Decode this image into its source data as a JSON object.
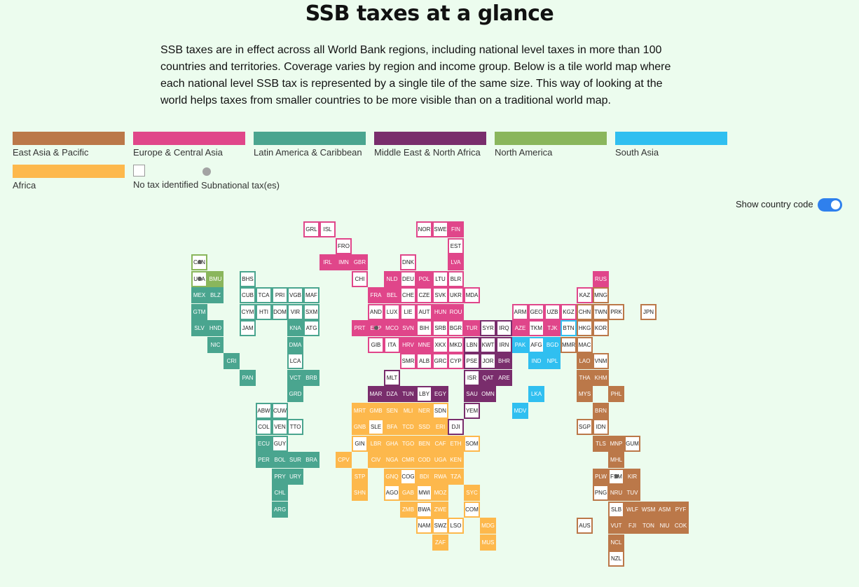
{
  "title": "SSB taxes at a glance",
  "intro": "SSB taxes are in effect across all World Bank regions, including national level taxes in more than 100 countries and territories. Coverage varies by region and income group. Below is a tile world map where each national level SSB tax is represented by a single tile of the same size. This way of looking at the world helps taxes from smaller countries to be more visible than on a traditional world map.",
  "legend": {
    "regions": [
      {
        "id": "eap",
        "label": "East Asia & Pacific",
        "color": "#bb7849"
      },
      {
        "id": "eca",
        "label": "Europe & Central Asia",
        "color": "#e0468a"
      },
      {
        "id": "lac",
        "label": "Latin America & Caribbean",
        "color": "#4aa58f"
      },
      {
        "id": "mena",
        "label": "Middle East & North Africa",
        "color": "#792d6c"
      },
      {
        "id": "na",
        "label": "North America",
        "color": "#8ab65c"
      },
      {
        "id": "sa",
        "label": "South Asia",
        "color": "#30bff0"
      },
      {
        "id": "af",
        "label": "Africa",
        "color": "#fdb84c"
      }
    ],
    "no_tax_label": "No tax identified",
    "subnational_label": "Subnational tax(es)"
  },
  "toggle": {
    "label": "Show country code",
    "on": true
  },
  "tiles": [
    {
      "code": "GRL",
      "region": "eca",
      "tax": false
    },
    {
      "code": "ISL",
      "region": "eca",
      "tax": false
    },
    {
      "code": "NOR",
      "region": "eca",
      "tax": false
    },
    {
      "code": "SWE",
      "region": "eca",
      "tax": false
    },
    {
      "code": "FIN",
      "region": "eca",
      "tax": true
    },
    {
      "code": "FRO",
      "region": "eca",
      "tax": false
    },
    {
      "code": "EST",
      "region": "eca",
      "tax": false
    },
    {
      "code": "CAN",
      "region": "na",
      "tax": false,
      "sub": true
    },
    {
      "code": "IRL",
      "region": "eca",
      "tax": true
    },
    {
      "code": "IMN",
      "region": "eca",
      "tax": true
    },
    {
      "code": "GBR",
      "region": "eca",
      "tax": true
    },
    {
      "code": "DNK",
      "region": "eca",
      "tax": false
    },
    {
      "code": "LVA",
      "region": "eca",
      "tax": true
    },
    {
      "code": "USA",
      "region": "na",
      "tax": false,
      "sub": true
    },
    {
      "code": "BMU",
      "region": "na",
      "tax": true
    },
    {
      "code": "BHS",
      "region": "lac",
      "tax": false
    },
    {
      "code": "CHI",
      "region": "eca",
      "tax": false
    },
    {
      "code": "NLD",
      "region": "eca",
      "tax": true
    },
    {
      "code": "DEU",
      "region": "eca",
      "tax": false
    },
    {
      "code": "POL",
      "region": "eca",
      "tax": true
    },
    {
      "code": "LTU",
      "region": "eca",
      "tax": false
    },
    {
      "code": "BLR",
      "region": "eca",
      "tax": false
    },
    {
      "code": "RUS",
      "region": "eca",
      "tax": true
    },
    {
      "code": "MEX",
      "region": "lac",
      "tax": true
    },
    {
      "code": "BLZ",
      "region": "lac",
      "tax": true
    },
    {
      "code": "CUB",
      "region": "lac",
      "tax": false
    },
    {
      "code": "TCA",
      "region": "lac",
      "tax": false
    },
    {
      "code": "PRI",
      "region": "lac",
      "tax": false
    },
    {
      "code": "VGB",
      "region": "lac",
      "tax": false
    },
    {
      "code": "MAF",
      "region": "lac",
      "tax": false
    },
    {
      "code": "FRA",
      "region": "eca",
      "tax": true
    },
    {
      "code": "BEL",
      "region": "eca",
      "tax": true
    },
    {
      "code": "CHE",
      "region": "eca",
      "tax": false
    },
    {
      "code": "CZE",
      "region": "eca",
      "tax": false
    },
    {
      "code": "SVK",
      "region": "eca",
      "tax": false
    },
    {
      "code": "UKR",
      "region": "eca",
      "tax": false
    },
    {
      "code": "MDA",
      "region": "eca",
      "tax": false
    },
    {
      "code": "KAZ",
      "region": "eca",
      "tax": false
    },
    {
      "code": "MNG",
      "region": "eap",
      "tax": false
    },
    {
      "code": "GTM",
      "region": "lac",
      "tax": true
    },
    {
      "code": "CYM",
      "region": "lac",
      "tax": false
    },
    {
      "code": "HTI",
      "region": "lac",
      "tax": false
    },
    {
      "code": "DOM",
      "region": "lac",
      "tax": false
    },
    {
      "code": "VIR",
      "region": "lac",
      "tax": false
    },
    {
      "code": "SXM",
      "region": "lac",
      "tax": false
    },
    {
      "code": "AND",
      "region": "eca",
      "tax": false
    },
    {
      "code": "LUX",
      "region": "eca",
      "tax": false
    },
    {
      "code": "LIE",
      "region": "eca",
      "tax": false
    },
    {
      "code": "AUT",
      "region": "eca",
      "tax": false
    },
    {
      "code": "HUN",
      "region": "eca",
      "tax": true
    },
    {
      "code": "ROU",
      "region": "eca",
      "tax": true
    },
    {
      "code": "ARM",
      "region": "eca",
      "tax": false
    },
    {
      "code": "GEO",
      "region": "eca",
      "tax": false
    },
    {
      "code": "UZB",
      "region": "eca",
      "tax": false
    },
    {
      "code": "KGZ",
      "region": "eca",
      "tax": false
    },
    {
      "code": "CHN",
      "region": "eap",
      "tax": false
    },
    {
      "code": "TWN",
      "region": "eap",
      "tax": false
    },
    {
      "code": "PRK",
      "region": "eap",
      "tax": false
    },
    {
      "code": "JPN",
      "region": "eap",
      "tax": false
    },
    {
      "code": "SLV",
      "region": "lac",
      "tax": true
    },
    {
      "code": "HND",
      "region": "lac",
      "tax": true
    },
    {
      "code": "JAM",
      "region": "lac",
      "tax": false
    },
    {
      "code": "KNA",
      "region": "lac",
      "tax": true
    },
    {
      "code": "ATG",
      "region": "lac",
      "tax": false
    },
    {
      "code": "PRT",
      "region": "eca",
      "tax": true
    },
    {
      "code": "ESP",
      "region": "eca",
      "tax": true,
      "sub": true
    },
    {
      "code": "MCO",
      "region": "eca",
      "tax": true
    },
    {
      "code": "SVN",
      "region": "eca",
      "tax": true
    },
    {
      "code": "BIH",
      "region": "eca",
      "tax": false
    },
    {
      "code": "SRB",
      "region": "eca",
      "tax": false
    },
    {
      "code": "BGR",
      "region": "eca",
      "tax": false
    },
    {
      "code": "TUR",
      "region": "eca",
      "tax": true
    },
    {
      "code": "SYR",
      "region": "mena",
      "tax": false
    },
    {
      "code": "IRQ",
      "region": "mena",
      "tax": false
    },
    {
      "code": "AZE",
      "region": "eca",
      "tax": true
    },
    {
      "code": "TKM",
      "region": "eca",
      "tax": false
    },
    {
      "code": "TJK",
      "region": "eca",
      "tax": true
    },
    {
      "code": "BTN",
      "region": "sa",
      "tax": false
    },
    {
      "code": "HKG",
      "region": "eap",
      "tax": false
    },
    {
      "code": "KOR",
      "region": "eap",
      "tax": false
    },
    {
      "code": "NIC",
      "region": "lac",
      "tax": true
    },
    {
      "code": "DMA",
      "region": "lac",
      "tax": true
    },
    {
      "code": "GIB",
      "region": "eca",
      "tax": false
    },
    {
      "code": "ITA",
      "region": "eca",
      "tax": false
    },
    {
      "code": "HRV",
      "region": "eca",
      "tax": true
    },
    {
      "code": "MNE",
      "region": "eca",
      "tax": true
    },
    {
      "code": "XKX",
      "region": "eca",
      "tax": false
    },
    {
      "code": "MKD",
      "region": "eca",
      "tax": false
    },
    {
      "code": "LBN",
      "region": "mena",
      "tax": false
    },
    {
      "code": "KWT",
      "region": "mena",
      "tax": false
    },
    {
      "code": "IRN",
      "region": "mena",
      "tax": false
    },
    {
      "code": "PAK",
      "region": "sa",
      "tax": true
    },
    {
      "code": "AFG",
      "region": "sa",
      "tax": false
    },
    {
      "code": "BGD",
      "region": "sa",
      "tax": true
    },
    {
      "code": "MMR",
      "region": "eap",
      "tax": false
    },
    {
      "code": "MAC",
      "region": "eap",
      "tax": false
    },
    {
      "code": "CRI",
      "region": "lac",
      "tax": true
    },
    {
      "code": "LCA",
      "region": "lac",
      "tax": false
    },
    {
      "code": "SMR",
      "region": "eca",
      "tax": false
    },
    {
      "code": "ALB",
      "region": "eca",
      "tax": false
    },
    {
      "code": "GRC",
      "region": "eca",
      "tax": false
    },
    {
      "code": "CYP",
      "region": "eca",
      "tax": false
    },
    {
      "code": "PSE",
      "region": "mena",
      "tax": false
    },
    {
      "code": "JOR",
      "region": "mena",
      "tax": false
    },
    {
      "code": "BHR",
      "region": "mena",
      "tax": true
    },
    {
      "code": "IND",
      "region": "sa",
      "tax": true
    },
    {
      "code": "NPL",
      "region": "sa",
      "tax": true
    },
    {
      "code": "LAO",
      "region": "eap",
      "tax": true
    },
    {
      "code": "VNM",
      "region": "eap",
      "tax": false
    },
    {
      "code": "PAN",
      "region": "lac",
      "tax": true
    },
    {
      "code": "VCT",
      "region": "lac",
      "tax": true
    },
    {
      "code": "BRB",
      "region": "lac",
      "tax": true
    },
    {
      "code": "MLT",
      "region": "mena",
      "tax": false
    },
    {
      "code": "ISR",
      "region": "mena",
      "tax": false
    },
    {
      "code": "QAT",
      "region": "mena",
      "tax": true
    },
    {
      "code": "ARE",
      "region": "mena",
      "tax": true
    },
    {
      "code": "THA",
      "region": "eap",
      "tax": true
    },
    {
      "code": "KHM",
      "region": "eap",
      "tax": true
    },
    {
      "code": "GRD",
      "region": "lac",
      "tax": true
    },
    {
      "code": "MAR",
      "region": "mena",
      "tax": true
    },
    {
      "code": "DZA",
      "region": "mena",
      "tax": true
    },
    {
      "code": "TUN",
      "region": "mena",
      "tax": true
    },
    {
      "code": "LBY",
      "region": "mena",
      "tax": false
    },
    {
      "code": "EGY",
      "region": "mena",
      "tax": true
    },
    {
      "code": "SAU",
      "region": "mena",
      "tax": true
    },
    {
      "code": "OMN",
      "region": "mena",
      "tax": true
    },
    {
      "code": "LKA",
      "region": "sa",
      "tax": true
    },
    {
      "code": "MYS",
      "region": "eap",
      "tax": true
    },
    {
      "code": "PHL",
      "region": "eap",
      "tax": true
    },
    {
      "code": "ABW",
      "region": "lac",
      "tax": false
    },
    {
      "code": "CUW",
      "region": "lac",
      "tax": false
    },
    {
      "code": "MRT",
      "region": "af",
      "tax": true
    },
    {
      "code": "GMB",
      "region": "af",
      "tax": true
    },
    {
      "code": "SEN",
      "region": "af",
      "tax": true
    },
    {
      "code": "MLI",
      "region": "af",
      "tax": true
    },
    {
      "code": "NER",
      "region": "af",
      "tax": true
    },
    {
      "code": "SDN",
      "region": "af",
      "tax": false
    },
    {
      "code": "YEM",
      "region": "mena",
      "tax": false
    },
    {
      "code": "MDV",
      "region": "sa",
      "tax": true
    },
    {
      "code": "BRN",
      "region": "eap",
      "tax": true
    },
    {
      "code": "COL",
      "region": "lac",
      "tax": false
    },
    {
      "code": "VEN",
      "region": "lac",
      "tax": false
    },
    {
      "code": "TTO",
      "region": "lac",
      "tax": false
    },
    {
      "code": "GNB",
      "region": "af",
      "tax": true
    },
    {
      "code": "SLE",
      "region": "af",
      "tax": false
    },
    {
      "code": "BFA",
      "region": "af",
      "tax": true
    },
    {
      "code": "TCD",
      "region": "af",
      "tax": true
    },
    {
      "code": "SSD",
      "region": "af",
      "tax": true
    },
    {
      "code": "ERI",
      "region": "af",
      "tax": true
    },
    {
      "code": "DJI",
      "region": "mena",
      "tax": false
    },
    {
      "code": "SGP",
      "region": "eap",
      "tax": false
    },
    {
      "code": "IDN",
      "region": "eap",
      "tax": false
    },
    {
      "code": "ECU",
      "region": "lac",
      "tax": true
    },
    {
      "code": "GUY",
      "region": "lac",
      "tax": false
    },
    {
      "code": "GIN",
      "region": "af",
      "tax": false
    },
    {
      "code": "LBR",
      "region": "af",
      "tax": true
    },
    {
      "code": "GHA",
      "region": "af",
      "tax": true
    },
    {
      "code": "TGO",
      "region": "af",
      "tax": true
    },
    {
      "code": "BEN",
      "region": "af",
      "tax": true
    },
    {
      "code": "CAF",
      "region": "af",
      "tax": true
    },
    {
      "code": "ETH",
      "region": "af",
      "tax": true
    },
    {
      "code": "SOM",
      "region": "af",
      "tax": false
    },
    {
      "code": "TLS",
      "region": "eap",
      "tax": true
    },
    {
      "code": "MNP",
      "region": "eap",
      "tax": true
    },
    {
      "code": "GUM",
      "region": "eap",
      "tax": false
    },
    {
      "code": "PER",
      "region": "lac",
      "tax": true
    },
    {
      "code": "BOL",
      "region": "lac",
      "tax": true
    },
    {
      "code": "SUR",
      "region": "lac",
      "tax": true
    },
    {
      "code": "BRA",
      "region": "lac",
      "tax": true
    },
    {
      "code": "CPV",
      "region": "af",
      "tax": true
    },
    {
      "code": "CIV",
      "region": "af",
      "tax": true
    },
    {
      "code": "NGA",
      "region": "af",
      "tax": true
    },
    {
      "code": "CMR",
      "region": "af",
      "tax": true
    },
    {
      "code": "COD",
      "region": "af",
      "tax": true
    },
    {
      "code": "UGA",
      "region": "af",
      "tax": true
    },
    {
      "code": "KEN",
      "region": "af",
      "tax": true
    },
    {
      "code": "MHL",
      "region": "eap",
      "tax": true
    },
    {
      "code": "PRY",
      "region": "lac",
      "tax": true
    },
    {
      "code": "URY",
      "region": "lac",
      "tax": true
    },
    {
      "code": "STP",
      "region": "af",
      "tax": true
    },
    {
      "code": "GNQ",
      "region": "af",
      "tax": true
    },
    {
      "code": "COG",
      "region": "af",
      "tax": false
    },
    {
      "code": "BDI",
      "region": "af",
      "tax": true
    },
    {
      "code": "RWA",
      "region": "af",
      "tax": true
    },
    {
      "code": "TZA",
      "region": "af",
      "tax": true
    },
    {
      "code": "PLW",
      "region": "eap",
      "tax": true
    },
    {
      "code": "FSM",
      "region": "eap",
      "tax": false,
      "sub": true
    },
    {
      "code": "KIR",
      "region": "eap",
      "tax": true
    },
    {
      "code": "CHL",
      "region": "lac",
      "tax": true
    },
    {
      "code": "SHN",
      "region": "af",
      "tax": true
    },
    {
      "code": "AGO",
      "region": "af",
      "tax": false
    },
    {
      "code": "GAB",
      "region": "af",
      "tax": true
    },
    {
      "code": "MWI",
      "region": "af",
      "tax": false
    },
    {
      "code": "MOZ",
      "region": "af",
      "tax": true
    },
    {
      "code": "SYC",
      "region": "af",
      "tax": true
    },
    {
      "code": "PNG",
      "region": "eap",
      "tax": false
    },
    {
      "code": "NRU",
      "region": "eap",
      "tax": true
    },
    {
      "code": "TUV",
      "region": "eap",
      "tax": true
    },
    {
      "code": "ARG",
      "region": "lac",
      "tax": true
    },
    {
      "code": "ZMB",
      "region": "af",
      "tax": true
    },
    {
      "code": "BWA",
      "region": "af",
      "tax": false
    },
    {
      "code": "ZWE",
      "region": "af",
      "tax": true
    },
    {
      "code": "COM",
      "region": "af",
      "tax": false
    },
    {
      "code": "SLB",
      "region": "eap",
      "tax": false
    },
    {
      "code": "WLF",
      "region": "eap",
      "tax": true
    },
    {
      "code": "WSM",
      "region": "eap",
      "tax": true
    },
    {
      "code": "ASM",
      "region": "eap",
      "tax": true
    },
    {
      "code": "PYF",
      "region": "eap",
      "tax": true
    },
    {
      "code": "NAM",
      "region": "af",
      "tax": false
    },
    {
      "code": "SWZ",
      "region": "af",
      "tax": false
    },
    {
      "code": "LSO",
      "region": "af",
      "tax": false
    },
    {
      "code": "MDG",
      "region": "af",
      "tax": true
    },
    {
      "code": "AUS",
      "region": "eap",
      "tax": false
    },
    {
      "code": "VUT",
      "region": "eap",
      "tax": true
    },
    {
      "code": "FJI",
      "region": "eap",
      "tax": true
    },
    {
      "code": "TON",
      "region": "eap",
      "tax": true
    },
    {
      "code": "NIU",
      "region": "eap",
      "tax": true
    },
    {
      "code": "COK",
      "region": "eap",
      "tax": true
    },
    {
      "code": "ZAF",
      "region": "af",
      "tax": true
    },
    {
      "code": "MUS",
      "region": "af",
      "tax": true
    },
    {
      "code": "NCL",
      "region": "eap",
      "tax": true
    },
    {
      "code": "NZL",
      "region": "eap",
      "tax": false
    }
  ]
}
